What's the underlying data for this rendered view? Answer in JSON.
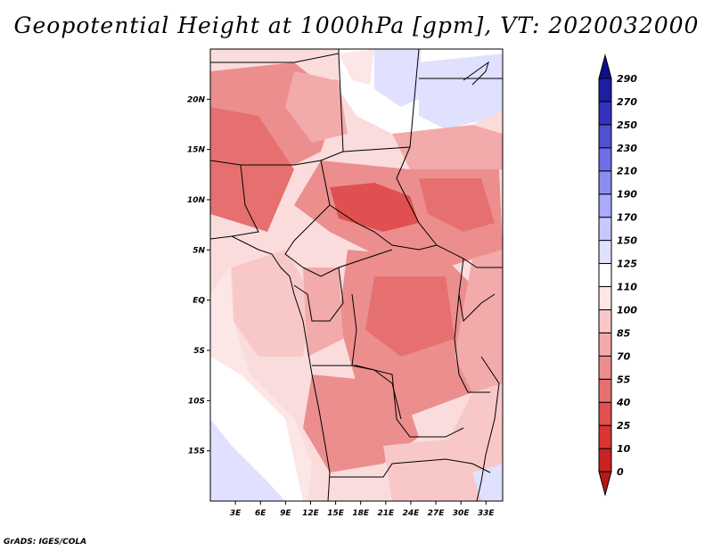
{
  "title": "Geopotential Height at 1000hPa [gpm], VT: 2020032000",
  "credit": "GrADS: IGES/COLA",
  "map": {
    "lat_labels": [
      "20N",
      "15N",
      "10N",
      "5N",
      "EQ",
      "5S",
      "10S",
      "15S"
    ],
    "lat_values": [
      20,
      15,
      10,
      5,
      0,
      -5,
      -10,
      -15
    ],
    "lon_labels": [
      "3E",
      "6E",
      "9E",
      "12E",
      "15E",
      "18E",
      "21E",
      "24E",
      "27E",
      "30E",
      "33E"
    ],
    "lon_values": [
      3,
      6,
      9,
      12,
      15,
      18,
      21,
      24,
      27,
      30,
      33
    ],
    "lat_range": [
      -20,
      25
    ],
    "lon_range": [
      0,
      35
    ]
  },
  "colorbar": {
    "labels": [
      "0",
      "10",
      "25",
      "40",
      "55",
      "70",
      "85",
      "100",
      "110",
      "125",
      "150",
      "170",
      "190",
      "210",
      "230",
      "250",
      "270",
      "290"
    ],
    "colors": [
      "#b41919",
      "#c82222",
      "#d83434",
      "#e05050",
      "#e67070",
      "#ec8e8e",
      "#f2aaaa",
      "#f8c8c8",
      "#fde6e6",
      "#ffffff",
      "#e0e0ff",
      "#c8c8ff",
      "#aaaaff",
      "#8c8cf0",
      "#6e6ee6",
      "#5050d2",
      "#3232be",
      "#1e1ea0",
      "#0f0f8c"
    ]
  }
}
